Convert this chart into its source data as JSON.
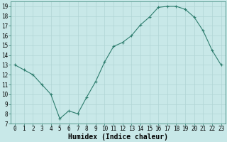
{
  "x": [
    0,
    1,
    2,
    3,
    4,
    5,
    6,
    7,
    8,
    9,
    10,
    11,
    12,
    13,
    14,
    15,
    16,
    17,
    18,
    19,
    20,
    21,
    22,
    23
  ],
  "y": [
    13,
    12.5,
    12.0,
    11.0,
    10.0,
    7.5,
    8.3,
    8.0,
    9.7,
    11.3,
    13.3,
    14.9,
    15.3,
    16.0,
    17.1,
    17.9,
    18.9,
    19.0,
    19.0,
    18.7,
    17.9,
    16.5,
    14.5,
    13.0
  ],
  "xlabel": "Humidex (Indice chaleur)",
  "xlim": [
    -0.5,
    23.5
  ],
  "ylim": [
    7,
    19.5
  ],
  "yticks": [
    7,
    8,
    9,
    10,
    11,
    12,
    13,
    14,
    15,
    16,
    17,
    18,
    19
  ],
  "xticks": [
    0,
    1,
    2,
    3,
    4,
    5,
    6,
    7,
    8,
    9,
    10,
    11,
    12,
    13,
    14,
    15,
    16,
    17,
    18,
    19,
    20,
    21,
    22,
    23
  ],
  "line_color": "#2e7d6e",
  "marker_color": "#2e7d6e",
  "bg_color": "#c8e8e8",
  "grid_color": "#b0d4d4",
  "tick_label_fontsize": 5.5,
  "xlabel_fontsize": 7.0
}
